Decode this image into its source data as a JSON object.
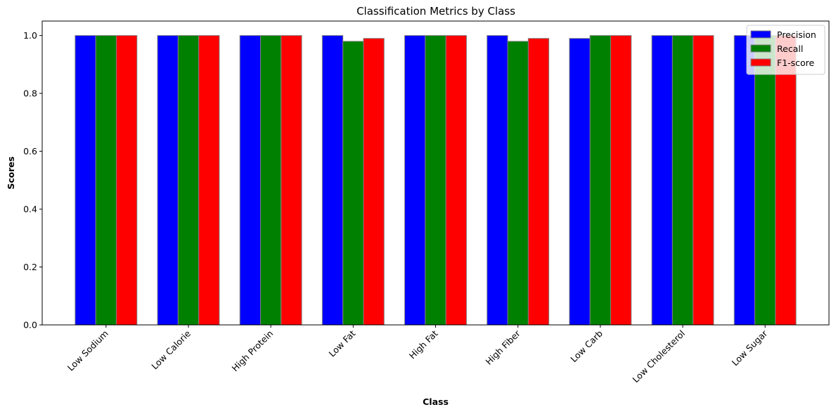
{
  "chart_data": {
    "type": "bar",
    "title": "Classification Metrics by Class",
    "xlabel": "Class",
    "ylabel": "Scores",
    "ylim": [
      0,
      1.05
    ],
    "yticks": [
      "0.0",
      "0.2",
      "0.4",
      "0.6",
      "0.8",
      "1.0"
    ],
    "categories": [
      "Low Sodium",
      "Low Calorie",
      "High Protein",
      "Low Fat",
      "High Fat",
      "High Fiber",
      "Low Carb",
      "Low Cholesterol",
      "Low Sugar"
    ],
    "series": [
      {
        "name": "Precision",
        "color": "#0000ff",
        "values": [
          1.0,
          1.0,
          1.0,
          1.0,
          1.0,
          1.0,
          0.99,
          1.0,
          1.0
        ]
      },
      {
        "name": "Recall",
        "color": "#008000",
        "values": [
          1.0,
          1.0,
          1.0,
          0.98,
          1.0,
          0.98,
          1.0,
          1.0,
          1.0
        ]
      },
      {
        "name": "F1-score",
        "color": "#ff0000",
        "values": [
          1.0,
          1.0,
          1.0,
          0.99,
          1.0,
          0.99,
          1.0,
          1.0,
          1.0
        ]
      }
    ],
    "grid": false,
    "legend_position": "top-right"
  }
}
